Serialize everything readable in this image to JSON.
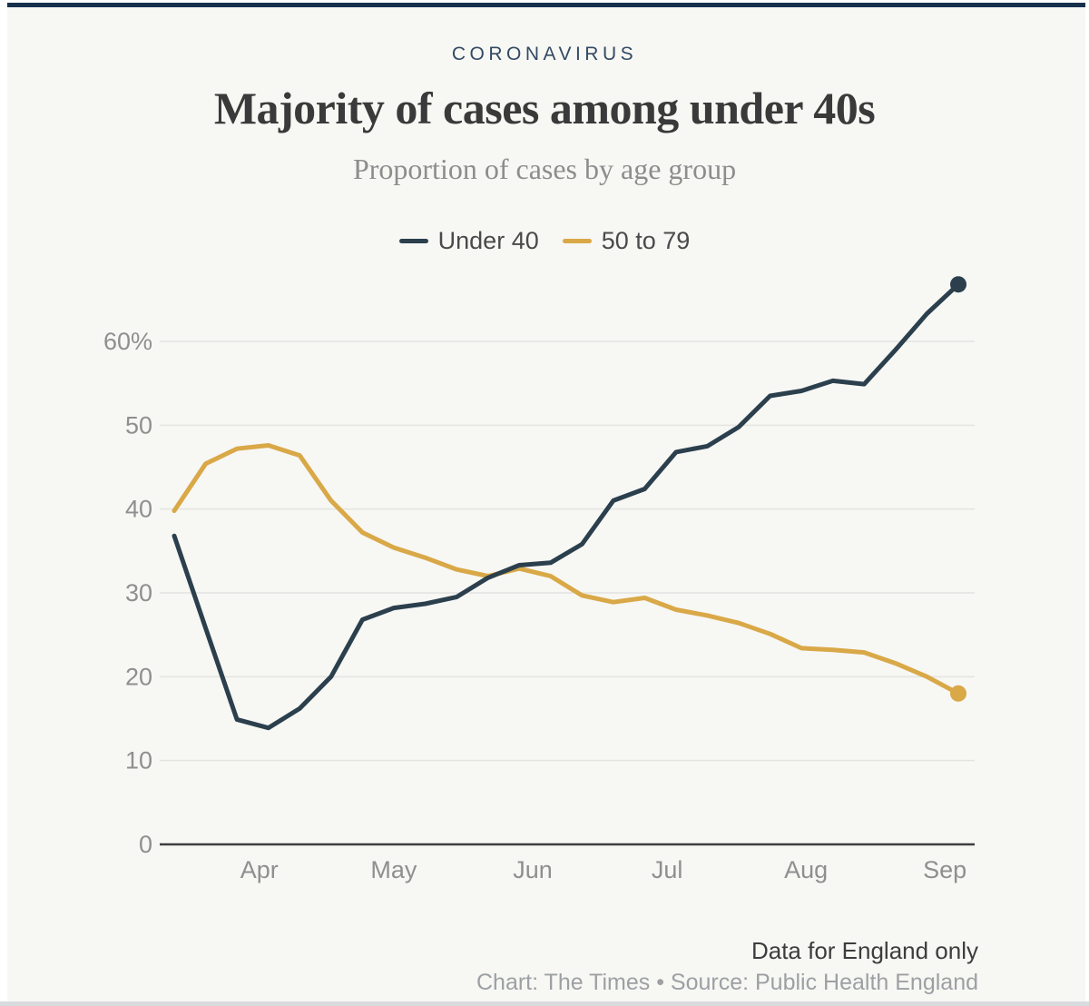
{
  "kicker": "CORONAVIRUS",
  "colors": {
    "top_bar": "#16304d",
    "card_background": "#f7f7f4",
    "grid_line": "#e4e4e1",
    "axis_line": "#3d3d3d",
    "tick_label": "#8f8f8f"
  },
  "chart_data": {
    "type": "line",
    "title": "Majority of cases among under 40s",
    "subtitle": "Proportion of cases by age group",
    "note": "Data for England only",
    "credit": "Chart: The Times • Source: Public Health England",
    "grid": "horizontal",
    "legend_position": "top-center",
    "ylim": [
      0,
      67
    ],
    "y_ticks": [
      0,
      10,
      20,
      30,
      40,
      50,
      60
    ],
    "y_tick_labels": [
      "0",
      "10",
      "20",
      "30",
      "40",
      "50",
      "60%"
    ],
    "x_tick_dates": [
      "2020-04-01",
      "2020-05-01",
      "2020-06-01",
      "2020-07-01",
      "2020-08-01",
      "2020-09-01"
    ],
    "x_tick_labels": [
      "Apr",
      "May",
      "Jun",
      "Jul",
      "Aug",
      "Sep"
    ],
    "x": [
      "2020-03-13",
      "2020-03-20",
      "2020-03-27",
      "2020-04-03",
      "2020-04-10",
      "2020-04-17",
      "2020-04-24",
      "2020-05-01",
      "2020-05-08",
      "2020-05-15",
      "2020-05-22",
      "2020-05-29",
      "2020-06-05",
      "2020-06-12",
      "2020-06-19",
      "2020-06-26",
      "2020-07-03",
      "2020-07-10",
      "2020-07-17",
      "2020-07-24",
      "2020-07-31",
      "2020-08-07",
      "2020-08-14",
      "2020-08-21",
      "2020-08-28",
      "2020-09-04"
    ],
    "series": [
      {
        "name": "Under 40",
        "color": "#2b3f4d",
        "end_dot": true,
        "values": [
          36.8,
          25.8,
          14.9,
          13.9,
          16.2,
          20.0,
          26.8,
          28.2,
          28.7,
          29.5,
          31.8,
          33.3,
          33.6,
          35.8,
          41.0,
          42.4,
          46.8,
          47.5,
          49.8,
          53.5,
          54.1,
          55.3,
          54.9,
          59.0,
          63.3,
          66.8
        ]
      },
      {
        "name": "50 to 79",
        "color": "#d9a847",
        "end_dot": true,
        "values": [
          39.8,
          45.4,
          47.2,
          47.6,
          46.4,
          41.0,
          37.2,
          35.4,
          34.2,
          32.8,
          32.0,
          32.9,
          32.0,
          29.7,
          28.9,
          29.4,
          28.0,
          27.3,
          26.4,
          25.1,
          23.4,
          23.2,
          22.9,
          21.6,
          20.0,
          18.0
        ]
      }
    ]
  }
}
